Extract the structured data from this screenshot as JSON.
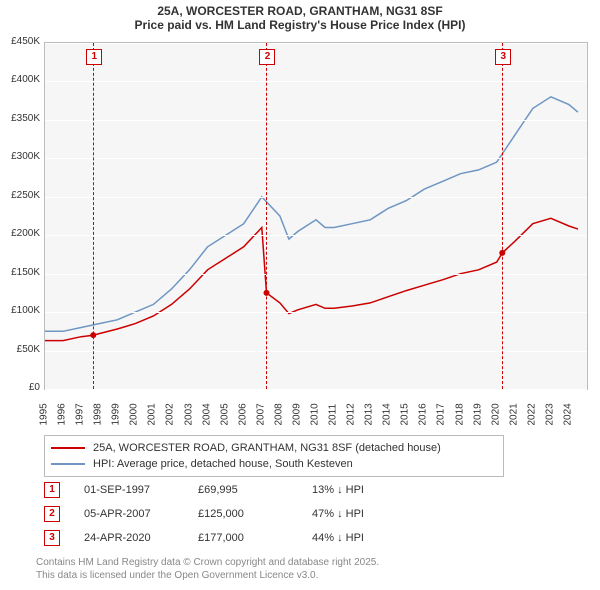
{
  "title": {
    "line1": "25A, WORCESTER ROAD, GRANTHAM, NG31 8SF",
    "line2": "Price paid vs. HM Land Registry's House Price Index (HPI)"
  },
  "chart": {
    "type": "line",
    "background_color": "#f6f6f6",
    "grid_color": "#ffffff",
    "border_color": "#bbbbbb",
    "x": {
      "min": 1995,
      "max": 2025,
      "ticks": [
        1995,
        1996,
        1997,
        1998,
        1999,
        2000,
        2001,
        2002,
        2003,
        2004,
        2005,
        2006,
        2007,
        2008,
        2009,
        2010,
        2011,
        2012,
        2013,
        2014,
        2015,
        2016,
        2017,
        2018,
        2019,
        2020,
        2021,
        2022,
        2023,
        2024
      ],
      "label_fontsize": 10,
      "label_rotation": -90
    },
    "y": {
      "min": 0,
      "max": 450000,
      "ticks": [
        0,
        50000,
        100000,
        150000,
        200000,
        250000,
        300000,
        350000,
        400000,
        450000
      ],
      "tick_labels": [
        "£0",
        "£50K",
        "£100K",
        "£150K",
        "£200K",
        "£250K",
        "£300K",
        "£350K",
        "£400K",
        "£450K"
      ],
      "label_fontsize": 10
    },
    "series": [
      {
        "name": "hpi",
        "label": "HPI: Average price, detached house, South Kesteven",
        "color": "#6f96c3",
        "line_width": 1.5,
        "data": [
          [
            1995,
            75000
          ],
          [
            1996,
            75000
          ],
          [
            1997,
            80000
          ],
          [
            1998,
            85000
          ],
          [
            1999,
            90000
          ],
          [
            2000,
            100000
          ],
          [
            2001,
            110000
          ],
          [
            2002,
            130000
          ],
          [
            2003,
            155000
          ],
          [
            2004,
            185000
          ],
          [
            2005,
            200000
          ],
          [
            2006,
            215000
          ],
          [
            2007,
            250000
          ],
          [
            2008,
            225000
          ],
          [
            2008.5,
            195000
          ],
          [
            2009,
            205000
          ],
          [
            2010,
            220000
          ],
          [
            2010.5,
            210000
          ],
          [
            2011,
            210000
          ],
          [
            2012,
            215000
          ],
          [
            2013,
            220000
          ],
          [
            2014,
            235000
          ],
          [
            2015,
            245000
          ],
          [
            2016,
            260000
          ],
          [
            2017,
            270000
          ],
          [
            2018,
            280000
          ],
          [
            2019,
            285000
          ],
          [
            2020,
            295000
          ],
          [
            2021,
            330000
          ],
          [
            2022,
            365000
          ],
          [
            2023,
            380000
          ],
          [
            2024,
            370000
          ],
          [
            2024.5,
            360000
          ]
        ]
      },
      {
        "name": "property",
        "label": "25A, WORCESTER ROAD, GRANTHAM, NG31 8SF (detached house)",
        "color": "#cc0000",
        "line_width": 1.5,
        "data": [
          [
            1995,
            63000
          ],
          [
            1996,
            63000
          ],
          [
            1997,
            68000
          ],
          [
            1997.67,
            69995
          ],
          [
            1998,
            72000
          ],
          [
            1999,
            78000
          ],
          [
            2000,
            85000
          ],
          [
            2001,
            95000
          ],
          [
            2002,
            110000
          ],
          [
            2003,
            130000
          ],
          [
            2004,
            155000
          ],
          [
            2005,
            170000
          ],
          [
            2006,
            185000
          ],
          [
            2007,
            210000
          ],
          [
            2007.26,
            125000
          ],
          [
            2008,
            112000
          ],
          [
            2008.5,
            98000
          ],
          [
            2009,
            103000
          ],
          [
            2010,
            110000
          ],
          [
            2010.5,
            105000
          ],
          [
            2011,
            105000
          ],
          [
            2012,
            108000
          ],
          [
            2013,
            112000
          ],
          [
            2014,
            120000
          ],
          [
            2015,
            128000
          ],
          [
            2016,
            135000
          ],
          [
            2017,
            142000
          ],
          [
            2018,
            150000
          ],
          [
            2019,
            155000
          ],
          [
            2020,
            165000
          ],
          [
            2020.31,
            177000
          ],
          [
            2021,
            192000
          ],
          [
            2022,
            215000
          ],
          [
            2023,
            222000
          ],
          [
            2024,
            212000
          ],
          [
            2024.5,
            208000
          ]
        ]
      }
    ],
    "markers": [
      {
        "id": "1",
        "x": 1997.67,
        "y": 69995
      },
      {
        "id": "2",
        "x": 2007.26,
        "y": 125000
      },
      {
        "id": "3",
        "x": 2020.31,
        "y": 177000
      }
    ],
    "marker_style": {
      "box_border": "#cc0000",
      "box_bg": "#ffffff",
      "vline_color": "#cc0000",
      "vline_dash": "4,3"
    }
  },
  "legend": {
    "items": [
      {
        "color": "#cc0000",
        "label": "25A, WORCESTER ROAD, GRANTHAM, NG31 8SF (detached house)"
      },
      {
        "color": "#6f96c3",
        "label": "HPI: Average price, detached house, South Kesteven"
      }
    ]
  },
  "transactions": [
    {
      "id": "1",
      "date": "01-SEP-1997",
      "price": "£69,995",
      "diff": "13% ↓ HPI"
    },
    {
      "id": "2",
      "date": "05-APR-2007",
      "price": "£125,000",
      "diff": "47% ↓ HPI"
    },
    {
      "id": "3",
      "date": "24-APR-2020",
      "price": "£177,000",
      "diff": "44% ↓ HPI"
    }
  ],
  "footer": {
    "line1": "Contains HM Land Registry data © Crown copyright and database right 2025.",
    "line2": "This data is licensed under the Open Government Licence v3.0."
  }
}
